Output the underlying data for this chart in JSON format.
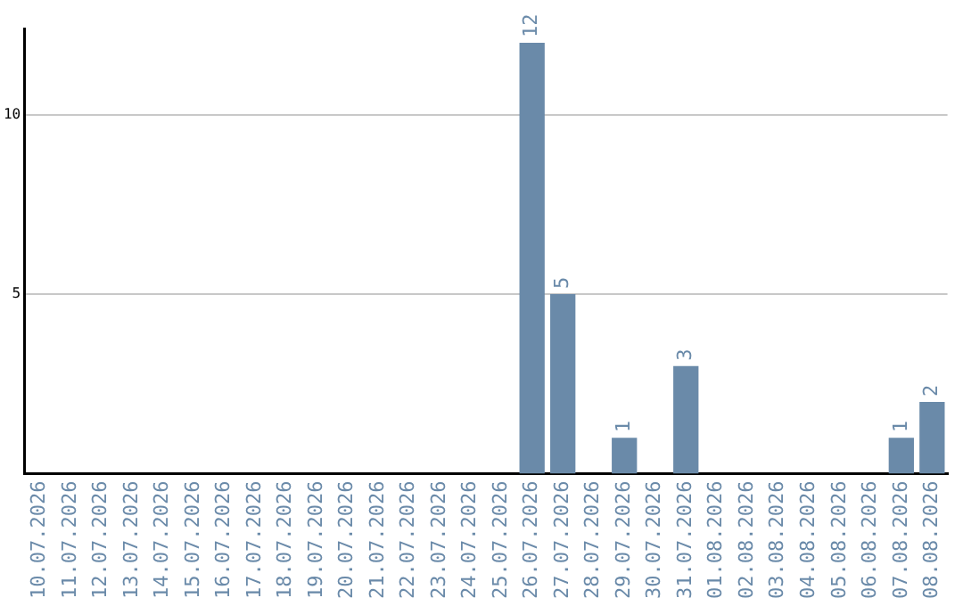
{
  "chart_data": {
    "type": "bar",
    "categories": [
      "10.07.2026",
      "11.07.2026",
      "12.07.2026",
      "13.07.2026",
      "14.07.2026",
      "15.07.2026",
      "16.07.2026",
      "17.07.2026",
      "18.07.2026",
      "19.07.2026",
      "20.07.2026",
      "21.07.2026",
      "22.07.2026",
      "23.07.2026",
      "24.07.2026",
      "25.07.2026",
      "26.07.2026",
      "27.07.2026",
      "28.07.2026",
      "29.07.2026",
      "30.07.2026",
      "31.07.2026",
      "01.08.2026",
      "02.08.2026",
      "03.08.2026",
      "04.08.2026",
      "05.08.2026",
      "06.08.2026",
      "07.08.2026",
      "08.08.2026"
    ],
    "values": [
      0,
      0,
      0,
      0,
      0,
      0,
      0,
      0,
      0,
      0,
      0,
      0,
      0,
      0,
      0,
      0,
      12,
      5,
      0,
      1,
      0,
      3,
      0,
      0,
      0,
      0,
      0,
      0,
      1,
      2
    ],
    "value_labels": [
      null,
      null,
      null,
      null,
      null,
      null,
      null,
      null,
      null,
      null,
      null,
      null,
      null,
      null,
      null,
      null,
      "12",
      "5",
      null,
      "1",
      null,
      "3",
      null,
      null,
      null,
      null,
      null,
      null,
      "1",
      "2"
    ],
    "color": "#6a8aa9",
    "ylim": [
      0,
      12.4
    ],
    "yticks": [
      5,
      10
    ],
    "grid": "y",
    "legend": false
  }
}
